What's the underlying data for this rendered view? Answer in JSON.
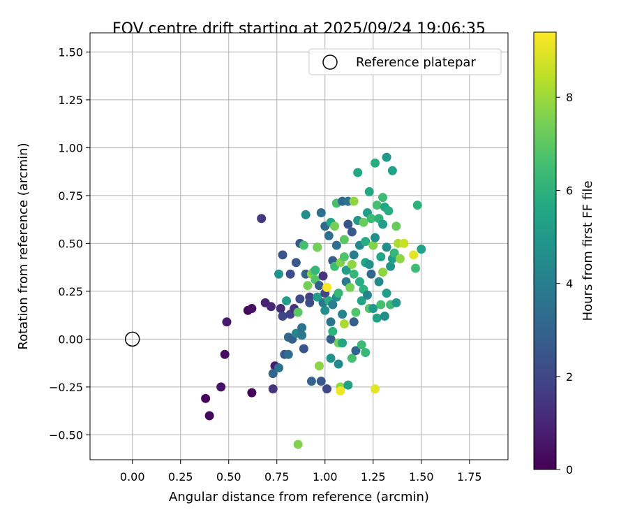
{
  "chart_data": {
    "type": "scatter",
    "title": "FOV centre drift starting at 2025/09/24 19:06:35",
    "xlabel": "Angular distance from reference (arcmin)",
    "ylabel": "Rotation from reference (arcmin)",
    "xlim": [
      -0.22,
      1.95
    ],
    "ylim": [
      -0.63,
      1.6
    ],
    "x_ticks": [
      0.0,
      0.25,
      0.5,
      0.75,
      1.0,
      1.25,
      1.5,
      1.75
    ],
    "x_tick_labels": [
      "0.00",
      "0.25",
      "0.50",
      "0.75",
      "1.00",
      "1.25",
      "1.50",
      "1.75"
    ],
    "y_ticks": [
      -0.5,
      -0.25,
      0.0,
      0.25,
      0.5,
      0.75,
      1.0,
      1.25,
      1.5
    ],
    "y_tick_labels": [
      "−0.50",
      "−0.25",
      "0.00",
      "0.25",
      "0.50",
      "0.75",
      "1.00",
      "1.25",
      "1.50"
    ],
    "grid": true,
    "legend": {
      "label": "Reference platepar",
      "placement": "top-right"
    },
    "reference_point": {
      "x": 0.0,
      "y": 0.0
    },
    "colorbar": {
      "label": "Hours from first FF file",
      "colormap": "viridis",
      "range": [
        0,
        9.4
      ],
      "ticks": [
        0,
        2,
        4,
        6,
        8
      ],
      "tick_labels": [
        "0",
        "2",
        "4",
        "6",
        "8"
      ]
    },
    "points": [
      {
        "x": 0.38,
        "y": -0.31,
        "h": 0.1
      },
      {
        "x": 0.4,
        "y": -0.4,
        "h": 0.2
      },
      {
        "x": 0.46,
        "y": -0.25,
        "h": 0.5
      },
      {
        "x": 0.48,
        "y": -0.08,
        "h": 0.3
      },
      {
        "x": 0.49,
        "y": 0.09,
        "h": 0.7
      },
      {
        "x": 0.6,
        "y": 0.15,
        "h": 0.2
      },
      {
        "x": 0.62,
        "y": 0.16,
        "h": 0.4
      },
      {
        "x": 0.62,
        "y": -0.28,
        "h": 0.1
      },
      {
        "x": 0.67,
        "y": 0.63,
        "h": 1.6
      },
      {
        "x": 0.69,
        "y": 0.19,
        "h": 0.9
      },
      {
        "x": 0.72,
        "y": 0.17,
        "h": 1.0
      },
      {
        "x": 0.73,
        "y": -0.26,
        "h": 1.4
      },
      {
        "x": 0.74,
        "y": -0.14,
        "h": 0.8
      },
      {
        "x": 0.73,
        "y": -0.18,
        "h": 3.0
      },
      {
        "x": 0.76,
        "y": 0.34,
        "h": 4.8
      },
      {
        "x": 0.76,
        "y": -0.15,
        "h": 3.6
      },
      {
        "x": 0.77,
        "y": 0.16,
        "h": 1.2
      },
      {
        "x": 0.78,
        "y": 0.12,
        "h": 2.0
      },
      {
        "x": 0.78,
        "y": 0.44,
        "h": 2.4
      },
      {
        "x": 0.79,
        "y": -0.08,
        "h": 2.6
      },
      {
        "x": 0.8,
        "y": 0.2,
        "h": 5.2
      },
      {
        "x": 0.81,
        "y": 0.01,
        "h": 3.2
      },
      {
        "x": 0.81,
        "y": -0.08,
        "h": 3.4
      },
      {
        "x": 0.82,
        "y": 0.13,
        "h": 1.8
      },
      {
        "x": 0.82,
        "y": 0.34,
        "h": 2.2
      },
      {
        "x": 0.83,
        "y": 0.0,
        "h": 2.8
      },
      {
        "x": 0.84,
        "y": 0.16,
        "h": 1.5
      },
      {
        "x": 0.85,
        "y": 0.4,
        "h": 2.6
      },
      {
        "x": 0.85,
        "y": 0.03,
        "h": 4.2
      },
      {
        "x": 0.86,
        "y": 0.14,
        "h": 7.0
      },
      {
        "x": 0.86,
        "y": -0.55,
        "h": 7.6
      },
      {
        "x": 0.87,
        "y": 0.21,
        "h": 2.2
      },
      {
        "x": 0.87,
        "y": 0.5,
        "h": 2.5
      },
      {
        "x": 0.88,
        "y": 0.02,
        "h": 3.8
      },
      {
        "x": 0.88,
        "y": 0.06,
        "h": 3.6
      },
      {
        "x": 0.89,
        "y": -0.05,
        "h": 2.4
      },
      {
        "x": 0.89,
        "y": 0.49,
        "h": 6.6
      },
      {
        "x": 0.9,
        "y": 0.65,
        "h": 4.6
      },
      {
        "x": 0.9,
        "y": 0.34,
        "h": 3.0
      },
      {
        "x": 0.91,
        "y": 0.28,
        "h": 7.4
      },
      {
        "x": 0.92,
        "y": 0.22,
        "h": 1.8
      },
      {
        "x": 0.92,
        "y": 0.19,
        "h": 2.2
      },
      {
        "x": 0.93,
        "y": -0.22,
        "h": 3.0
      },
      {
        "x": 0.93,
        "y": 0.34,
        "h": 7.8
      },
      {
        "x": 0.94,
        "y": 0.35,
        "h": 7.2
      },
      {
        "x": 0.95,
        "y": 0.36,
        "h": 6.2
      },
      {
        "x": 0.95,
        "y": 0.31,
        "h": 6.8
      },
      {
        "x": 0.96,
        "y": 0.22,
        "h": 5.2
      },
      {
        "x": 0.96,
        "y": 0.48,
        "h": 2.2
      },
      {
        "x": 0.96,
        "y": 0.48,
        "h": 7.4
      },
      {
        "x": 0.97,
        "y": 0.28,
        "h": 2.8
      },
      {
        "x": 0.97,
        "y": -0.14,
        "h": 7.8
      },
      {
        "x": 0.98,
        "y": -0.22,
        "h": 2.6
      },
      {
        "x": 0.98,
        "y": 0.66,
        "h": 3.4
      },
      {
        "x": 0.99,
        "y": 0.33,
        "h": 1.4
      },
      {
        "x": 0.99,
        "y": 0.19,
        "h": 3.8
      },
      {
        "x": 1.0,
        "y": 0.59,
        "h": 3.2
      },
      {
        "x": 1.0,
        "y": 0.24,
        "h": 2.0
      },
      {
        "x": 1.0,
        "y": 0.15,
        "h": 4.6
      },
      {
        "x": 1.01,
        "y": -0.26,
        "h": 2.0
      },
      {
        "x": 1.01,
        "y": 0.27,
        "h": 9.3
      },
      {
        "x": 1.02,
        "y": 0.54,
        "h": 3.4
      },
      {
        "x": 1.02,
        "y": 0.2,
        "h": 5.8
      },
      {
        "x": 1.03,
        "y": 0.0,
        "h": 2.8
      },
      {
        "x": 1.03,
        "y": -0.1,
        "h": 4.8
      },
      {
        "x": 1.03,
        "y": 0.09,
        "h": 3.6
      },
      {
        "x": 1.03,
        "y": 0.61,
        "h": 5.6
      },
      {
        "x": 1.04,
        "y": 0.18,
        "h": 4.0
      },
      {
        "x": 1.04,
        "y": 0.41,
        "h": 2.8
      },
      {
        "x": 1.04,
        "y": 0.04,
        "h": 6.0
      },
      {
        "x": 1.05,
        "y": 0.59,
        "h": 7.4
      },
      {
        "x": 1.05,
        "y": 0.38,
        "h": 6.4
      },
      {
        "x": 1.06,
        "y": 0.22,
        "h": 4.6
      },
      {
        "x": 1.06,
        "y": 0.49,
        "h": 3.4
      },
      {
        "x": 1.06,
        "y": 0.71,
        "h": 6.6
      },
      {
        "x": 1.07,
        "y": -0.02,
        "h": 7.4
      },
      {
        "x": 1.07,
        "y": 0.24,
        "h": 6.2
      },
      {
        "x": 1.07,
        "y": -0.13,
        "h": 4.4
      },
      {
        "x": 1.08,
        "y": 0.4,
        "h": 7.6
      },
      {
        "x": 1.08,
        "y": -0.25,
        "h": 7.8
      },
      {
        "x": 1.08,
        "y": -0.27,
        "h": 9.2
      },
      {
        "x": 1.09,
        "y": 0.72,
        "h": 3.2
      },
      {
        "x": 1.09,
        "y": 0.13,
        "h": 4.2
      },
      {
        "x": 1.09,
        "y": -0.02,
        "h": 5.6
      },
      {
        "x": 1.1,
        "y": 0.52,
        "h": 7.0
      },
      {
        "x": 1.1,
        "y": 0.08,
        "h": 8.2
      },
      {
        "x": 1.1,
        "y": 0.43,
        "h": 6.8
      },
      {
        "x": 1.11,
        "y": 0.3,
        "h": 3.8
      },
      {
        "x": 1.11,
        "y": 0.36,
        "h": 5.2
      },
      {
        "x": 1.12,
        "y": 0.72,
        "h": 3.6
      },
      {
        "x": 1.12,
        "y": -0.24,
        "h": 5.4
      },
      {
        "x": 1.12,
        "y": 0.6,
        "h": 2.4
      },
      {
        "x": 1.13,
        "y": 0.27,
        "h": 7.4
      },
      {
        "x": 1.14,
        "y": 0.39,
        "h": 7.8
      },
      {
        "x": 1.14,
        "y": 0.56,
        "h": 2.6
      },
      {
        "x": 1.14,
        "y": -0.1,
        "h": 6.6
      },
      {
        "x": 1.15,
        "y": 0.44,
        "h": 4.0
      },
      {
        "x": 1.15,
        "y": 0.72,
        "h": 7.8
      },
      {
        "x": 1.15,
        "y": 0.09,
        "h": 2.8
      },
      {
        "x": 1.15,
        "y": 0.34,
        "h": 6.2
      },
      {
        "x": 1.16,
        "y": -0.06,
        "h": 3.0
      },
      {
        "x": 1.16,
        "y": 0.14,
        "h": 6.8
      },
      {
        "x": 1.17,
        "y": 0.62,
        "h": 5.0
      },
      {
        "x": 1.17,
        "y": 0.87,
        "h": 5.6
      },
      {
        "x": 1.18,
        "y": 0.49,
        "h": 4.4
      },
      {
        "x": 1.18,
        "y": 0.3,
        "h": 5.8
      },
      {
        "x": 1.19,
        "y": -0.03,
        "h": 6.4
      },
      {
        "x": 1.19,
        "y": 0.2,
        "h": 5.4
      },
      {
        "x": 1.2,
        "y": 0.61,
        "h": 7.2
      },
      {
        "x": 1.2,
        "y": 0.26,
        "h": 6.0
      },
      {
        "x": 1.21,
        "y": 0.4,
        "h": 5.6
      },
      {
        "x": 1.21,
        "y": -0.07,
        "h": 6.2
      },
      {
        "x": 1.21,
        "y": 0.51,
        "h": 5.8
      },
      {
        "x": 1.22,
        "y": 0.66,
        "h": 5.2
      },
      {
        "x": 1.22,
        "y": 0.23,
        "h": 4.2
      },
      {
        "x": 1.23,
        "y": 0.77,
        "h": 5.6
      },
      {
        "x": 1.23,
        "y": 0.16,
        "h": 6.8
      },
      {
        "x": 1.23,
        "y": 0.39,
        "h": 4.8
      },
      {
        "x": 1.24,
        "y": 0.63,
        "h": 6.4
      },
      {
        "x": 1.24,
        "y": 0.34,
        "h": 3.2
      },
      {
        "x": 1.25,
        "y": 0.49,
        "h": 7.6
      },
      {
        "x": 1.25,
        "y": 0.16,
        "h": 5.0
      },
      {
        "x": 1.26,
        "y": 0.92,
        "h": 5.8
      },
      {
        "x": 1.26,
        "y": 0.53,
        "h": 4.6
      },
      {
        "x": 1.26,
        "y": -0.26,
        "h": 9.0
      },
      {
        "x": 1.27,
        "y": 0.7,
        "h": 6.6
      },
      {
        "x": 1.27,
        "y": 0.11,
        "h": 5.4
      },
      {
        "x": 1.28,
        "y": 0.63,
        "h": 6.0
      },
      {
        "x": 1.28,
        "y": 0.3,
        "h": 4.4
      },
      {
        "x": 1.29,
        "y": 0.43,
        "h": 5.6
      },
      {
        "x": 1.29,
        "y": 0.18,
        "h": 6.6
      },
      {
        "x": 1.3,
        "y": 0.6,
        "h": 5.2
      },
      {
        "x": 1.3,
        "y": 0.35,
        "h": 7.8
      },
      {
        "x": 1.3,
        "y": 0.74,
        "h": 6.4
      },
      {
        "x": 1.31,
        "y": 0.12,
        "h": 4.6
      },
      {
        "x": 1.31,
        "y": 0.69,
        "h": 5.6
      },
      {
        "x": 1.32,
        "y": 0.95,
        "h": 5.0
      },
      {
        "x": 1.32,
        "y": 0.24,
        "h": 5.2
      },
      {
        "x": 1.32,
        "y": 0.48,
        "h": 4.6
      },
      {
        "x": 1.33,
        "y": 0.67,
        "h": 5.8
      },
      {
        "x": 1.34,
        "y": 0.18,
        "h": 6.4
      },
      {
        "x": 1.34,
        "y": 0.38,
        "h": 4.8
      },
      {
        "x": 1.35,
        "y": 0.42,
        "h": 5.2
      },
      {
        "x": 1.35,
        "y": 0.88,
        "h": 5.4
      },
      {
        "x": 1.36,
        "y": 0.45,
        "h": 6.2
      },
      {
        "x": 1.37,
        "y": 0.19,
        "h": 5.0
      },
      {
        "x": 1.37,
        "y": 0.59,
        "h": 7.2
      },
      {
        "x": 1.38,
        "y": 0.5,
        "h": 8.2
      },
      {
        "x": 1.39,
        "y": 0.42,
        "h": 7.8
      },
      {
        "x": 1.41,
        "y": 0.5,
        "h": 8.6
      },
      {
        "x": 1.46,
        "y": 0.44,
        "h": 9.0
      },
      {
        "x": 1.47,
        "y": 0.37,
        "h": 6.4
      },
      {
        "x": 1.48,
        "y": 0.7,
        "h": 6.0
      },
      {
        "x": 1.5,
        "y": 0.47,
        "h": 5.4
      }
    ]
  }
}
